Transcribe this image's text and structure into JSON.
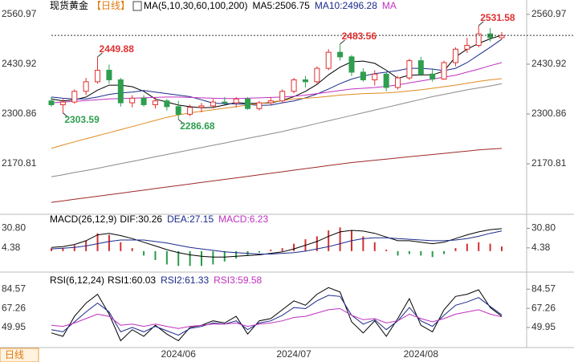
{
  "button": "日线",
  "chart_data": [
    {
      "type": "candlestick",
      "title": "现货黄金",
      "period": "【日线】",
      "indicator": "MA(5,10,30,60,100,200)",
      "legend": [
        {
          "text": "MA5:2506.75",
          "color": "#000000"
        },
        {
          "text": "MA10:2496.28",
          "color": "#1b2a8b"
        },
        {
          "text": "MA",
          "color": "#c030c0"
        }
      ],
      "ylim": [
        2043,
        2588
      ],
      "yticks": [
        2560.97,
        2430.92,
        2300.86,
        2170.81
      ],
      "up_color": "#e03030",
      "down_color": "#2e9e4f",
      "candles": [
        [
          2335,
          2345,
          2320,
          2325
        ],
        [
          2325,
          2340,
          2303.59,
          2332
        ],
        [
          2332,
          2365,
          2328,
          2360
        ],
        [
          2360,
          2395,
          2350,
          2385
        ],
        [
          2385,
          2449.88,
          2380,
          2415
        ],
        [
          2415,
          2430,
          2380,
          2390
        ],
        [
          2390,
          2395,
          2320,
          2330
        ],
        [
          2330,
          2350,
          2318,
          2342
        ],
        [
          2342,
          2350,
          2320,
          2325
        ],
        [
          2325,
          2345,
          2315,
          2335
        ],
        [
          2335,
          2340,
          2310,
          2320
        ],
        [
          2320,
          2335,
          2286.68,
          2300
        ],
        [
          2300,
          2325,
          2295,
          2318
        ],
        [
          2318,
          2330,
          2305,
          2322
        ],
        [
          2322,
          2340,
          2315,
          2332
        ],
        [
          2332,
          2345,
          2325,
          2330
        ],
        [
          2330,
          2345,
          2318,
          2340
        ],
        [
          2340,
          2345,
          2312,
          2315
        ],
        [
          2315,
          2335,
          2310,
          2330
        ],
        [
          2330,
          2345,
          2325,
          2335
        ],
        [
          2335,
          2365,
          2330,
          2360
        ],
        [
          2360,
          2395,
          2355,
          2390
        ],
        [
          2390,
          2400,
          2370,
          2385
        ],
        [
          2385,
          2425,
          2380,
          2420
        ],
        [
          2420,
          2470,
          2415,
          2462
        ],
        [
          2462,
          2483.56,
          2440,
          2450
        ],
        [
          2450,
          2455,
          2400,
          2410
        ],
        [
          2410,
          2420,
          2385,
          2390
        ],
        [
          2390,
          2415,
          2375,
          2405
        ],
        [
          2405,
          2410,
          2360,
          2370
        ],
        [
          2370,
          2400,
          2365,
          2395
        ],
        [
          2395,
          2445,
          2390,
          2440
        ],
        [
          2440,
          2450,
          2400,
          2405
        ],
        [
          2405,
          2420,
          2385,
          2392
        ],
        [
          2392,
          2440,
          2390,
          2435
        ],
        [
          2435,
          2475,
          2425,
          2470
        ],
        [
          2470,
          2500,
          2460,
          2480
        ],
        [
          2480,
          2531.58,
          2475,
          2510
        ],
        [
          2510,
          2525,
          2490,
          2500
        ],
        [
          2500,
          2515,
          2495,
          2506
        ]
      ],
      "high_labels": [
        2449.88,
        2483.56,
        2531.58
      ],
      "low_labels": [
        2303.59,
        2286.68
      ],
      "series": [
        {
          "color": "#000000",
          "values": [
            2340,
            2335,
            2338,
            2345,
            2363,
            2376,
            2376,
            2372,
            2360,
            2340,
            2332,
            2324,
            2320,
            2317,
            2318,
            2324,
            2331,
            2328,
            2329,
            2330,
            2336,
            2346,
            2360,
            2378,
            2403,
            2423,
            2437,
            2439,
            2433,
            2415,
            2394,
            2402,
            2403,
            2403,
            2413,
            2450,
            2470,
            2485,
            2497,
            2506.75
          ]
        },
        {
          "color": "#1b2a8b",
          "values": [
            2345,
            2342,
            2340,
            2340,
            2345,
            2352,
            2356,
            2358,
            2362,
            2358,
            2354,
            2350,
            2346,
            2338,
            2329,
            2328,
            2327,
            2326,
            2323,
            2324,
            2330,
            2335,
            2343,
            2353,
            2366,
            2380,
            2392,
            2400,
            2406,
            2410,
            2414,
            2420,
            2420,
            2418,
            2414,
            2420,
            2435,
            2455,
            2475,
            2496.28
          ]
        },
        {
          "color": "#c030c0",
          "values": [
            2330,
            2332,
            2334,
            2336,
            2338,
            2340,
            2341,
            2342,
            2343,
            2344,
            2345,
            2345,
            2344,
            2343,
            2342,
            2341,
            2341,
            2342,
            2343,
            2344,
            2345,
            2347,
            2350,
            2354,
            2358,
            2362,
            2366,
            2368,
            2370,
            2373,
            2377,
            2382,
            2387,
            2392,
            2397,
            2402,
            2410,
            2418,
            2427,
            2435
          ]
        },
        {
          "color": "#e08a1e",
          "values": [
            2211,
            2220,
            2228,
            2236,
            2244,
            2252,
            2260,
            2268,
            2276,
            2284,
            2292,
            2298,
            2304,
            2308,
            2312,
            2316,
            2320,
            2324,
            2328,
            2332,
            2336,
            2340,
            2342,
            2344,
            2347,
            2350,
            2352,
            2354,
            2355,
            2356,
            2358,
            2361,
            2364,
            2368,
            2372,
            2376,
            2381,
            2386,
            2390,
            2393
          ]
        },
        {
          "color": "#8a8a8a",
          "values": [
            2137,
            2142,
            2148,
            2153,
            2159,
            2165,
            2171,
            2177,
            2183,
            2189,
            2195,
            2201,
            2207,
            2213,
            2219,
            2225,
            2231,
            2237,
            2243,
            2249,
            2255,
            2262,
            2269,
            2276,
            2283,
            2290,
            2297,
            2304,
            2311,
            2318,
            2325,
            2332,
            2339,
            2346,
            2352,
            2358,
            2364,
            2369,
            2374,
            2380
          ]
        },
        {
          "color": "#a02828",
          "values": [
            2070,
            2074,
            2078,
            2082,
            2086,
            2090,
            2094,
            2098,
            2102,
            2106,
            2110,
            2114,
            2118,
            2122,
            2126,
            2130,
            2134,
            2138,
            2142,
            2146,
            2150,
            2154,
            2158,
            2162,
            2166,
            2170,
            2174,
            2177,
            2180,
            2183,
            2186,
            2189,
            2192,
            2195,
            2198,
            2201,
            2204,
            2207,
            2209,
            2211
          ]
        }
      ]
    },
    {
      "type": "macd",
      "title": "MACD(26,12,9)",
      "legend": [
        {
          "text": "DIF:30.26",
          "color": "#000000"
        },
        {
          "text": "DEA:27.15",
          "color": "#1b2a8b"
        },
        {
          "text": "MACD:6.23",
          "color": "#c030c0"
        }
      ],
      "ylim": [
        -24,
        46.45
      ],
      "yticks": [
        {
          "value": 30.8,
          "label": "30.80"
        },
        4.38
      ],
      "series": [
        {
          "color": "#000000",
          "values": [
            5,
            6,
            9,
            14,
            22,
            24,
            21,
            17,
            12,
            7,
            2,
            -2,
            -5,
            -7,
            -8,
            -8,
            -7,
            -6,
            -5,
            -3,
            -1,
            3,
            8,
            13,
            20,
            26,
            28,
            27,
            24,
            19,
            14,
            14,
            12,
            10,
            12,
            17,
            22,
            26,
            29,
            30.26
          ]
        },
        {
          "color": "#1b2a8b",
          "values": [
            3,
            4,
            5,
            7,
            10,
            13,
            15,
            15,
            15,
            13,
            11,
            8,
            5,
            3,
            1,
            -1,
            -2,
            -3,
            -4,
            -4,
            -3,
            -2,
            0,
            3,
            6,
            10,
            14,
            17,
            18,
            18,
            17,
            16,
            15,
            14,
            14,
            15,
            17,
            20,
            24,
            27.15
          ]
        }
      ],
      "histogram": {
        "up_color": "#d03030",
        "down_color": "#2a9a4a",
        "values": [
          4,
          4,
          8,
          14,
          24,
          22,
          12,
          4,
          -6,
          -12,
          -18,
          -20,
          -20,
          -20,
          -18,
          -14,
          -10,
          -6,
          -2,
          2,
          4,
          10,
          16,
          20,
          28,
          32,
          28,
          20,
          12,
          2,
          -6,
          -4,
          -6,
          -8,
          -4,
          4,
          10,
          12,
          10,
          6.23
        ]
      }
    },
    {
      "type": "line",
      "title": "RSI(6,12,24)",
      "legend": [
        {
          "text": "RSI1:60.03",
          "color": "#000000"
        },
        {
          "text": "RSI2:61.33",
          "color": "#1b2a8b"
        },
        {
          "text": "RSI3:59.58",
          "color": "#c030c0"
        }
      ],
      "ylim": [
        34,
        92
      ],
      "yticks": [
        84.57,
        67.26,
        49.95
      ],
      "categories": [
        null,
        null,
        null,
        null,
        null,
        null,
        null,
        null,
        null,
        null,
        null,
        "2024/06",
        null,
        null,
        null,
        null,
        null,
        null,
        null,
        null,
        null,
        "2024/07",
        null,
        null,
        null,
        null,
        null,
        null,
        null,
        null,
        null,
        null,
        "2024/08",
        null,
        null,
        null,
        null,
        null,
        null,
        null
      ],
      "series": [
        {
          "color": "#000000",
          "values": [
            45,
            42,
            60,
            72,
            80,
            62,
            38,
            48,
            42,
            52,
            44,
            38,
            50,
            52,
            56,
            54,
            60,
            44,
            56,
            58,
            66,
            74,
            70,
            80,
            86,
            82,
            55,
            45,
            56,
            42,
            58,
            76,
            52,
            46,
            66,
            78,
            80,
            84,
            68,
            60.03
          ]
        },
        {
          "color": "#1b2a8b",
          "values": [
            48,
            46,
            55,
            64,
            72,
            64,
            46,
            50,
            46,
            51,
            47,
            43,
            49,
            51,
            54,
            53,
            56,
            48,
            54,
            56,
            61,
            68,
            67,
            74,
            79,
            78,
            61,
            53,
            57,
            48,
            56,
            68,
            56,
            51,
            61,
            70,
            73,
            77,
            69,
            61.33
          ]
        },
        {
          "color": "#c030c0",
          "values": [
            52,
            51,
            54,
            58,
            62,
            60,
            52,
            53,
            51,
            53,
            51,
            49,
            51,
            52,
            53,
            53,
            54,
            51,
            53,
            54,
            56,
            59,
            60,
            63,
            66,
            67,
            61,
            57,
            58,
            54,
            56,
            62,
            58,
            55,
            58,
            62,
            64,
            66,
            62,
            59.58
          ]
        }
      ]
    }
  ]
}
